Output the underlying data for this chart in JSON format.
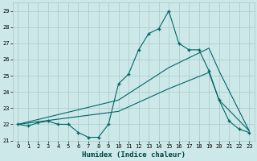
{
  "title": "",
  "xlabel": "Humidex (Indice chaleur)",
  "bg_color": "#cde8e8",
  "grid_color": "#a8c8c8",
  "line_color": "#006666",
  "xlim": [
    -0.5,
    23.5
  ],
  "ylim": [
    21.0,
    29.5
  ],
  "yticks": [
    21,
    22,
    23,
    24,
    25,
    26,
    27,
    28,
    29
  ],
  "xticks": [
    0,
    1,
    2,
    3,
    4,
    5,
    6,
    7,
    8,
    9,
    10,
    11,
    12,
    13,
    14,
    15,
    16,
    17,
    18,
    19,
    20,
    21,
    22,
    23
  ],
  "line1_x": [
    0,
    1,
    2,
    3,
    4,
    5,
    6,
    7,
    8,
    9,
    10,
    11,
    12,
    13,
    14,
    15,
    16,
    17,
    18,
    19,
    20,
    21,
    22,
    23
  ],
  "line1_y": [
    22.0,
    21.9,
    22.1,
    22.2,
    22.0,
    22.0,
    21.5,
    21.2,
    21.2,
    22.0,
    24.5,
    25.1,
    26.6,
    27.6,
    27.9,
    29.0,
    27.0,
    26.6,
    26.6,
    25.3,
    23.5,
    22.2,
    21.7,
    21.5
  ],
  "line2_x": [
    0,
    10,
    15,
    19,
    20,
    23
  ],
  "line2_y": [
    22.0,
    23.5,
    25.5,
    26.7,
    25.3,
    21.6
  ],
  "line3_x": [
    0,
    10,
    15,
    19,
    20,
    23
  ],
  "line3_y": [
    22.0,
    22.8,
    24.2,
    25.2,
    23.5,
    21.6
  ]
}
